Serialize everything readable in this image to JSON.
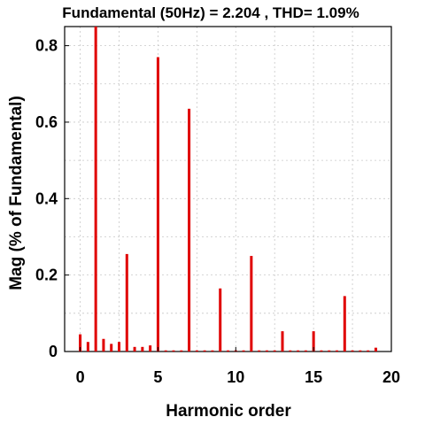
{
  "chart_data": {
    "type": "bar",
    "title": "Fundamental (50Hz) = 2.204 , THD= 1.09%",
    "xlabel": "Harmonic order",
    "ylabel": "Mag (% of Fundamental)",
    "xlim": [
      -1,
      20
    ],
    "ylim": [
      0,
      0.85
    ],
    "xticks": [
      "0",
      "5",
      "10",
      "15",
      "20"
    ],
    "yticks": [
      "0",
      "0.2",
      "0.4",
      "0.6",
      "0.8"
    ],
    "grid": true,
    "bar_color": "#e00000",
    "x": [
      0,
      0.5,
      1,
      1.5,
      2,
      2.5,
      3,
      3.5,
      4,
      4.5,
      5,
      5.5,
      6,
      6.5,
      7,
      7.5,
      8,
      8.5,
      9,
      9.5,
      10,
      10.5,
      11,
      11.5,
      12,
      12.5,
      13,
      13.5,
      14,
      14.5,
      15,
      15.5,
      16,
      16.5,
      17,
      17.5,
      18,
      18.5,
      19
    ],
    "values": [
      0.045,
      0.025,
      0.85,
      0.033,
      0.02,
      0.025,
      0.255,
      0.012,
      0.012,
      0.016,
      0.77,
      0.003,
      0.003,
      0.003,
      0.635,
      0.003,
      0.003,
      0.003,
      0.165,
      0.003,
      0.003,
      0.003,
      0.25,
      0.003,
      0.003,
      0.003,
      0.053,
      0.003,
      0.003,
      0.003,
      0.053,
      0.003,
      0.003,
      0.003,
      0.145,
      0.003,
      0.003,
      0.003,
      0.01
    ]
  }
}
